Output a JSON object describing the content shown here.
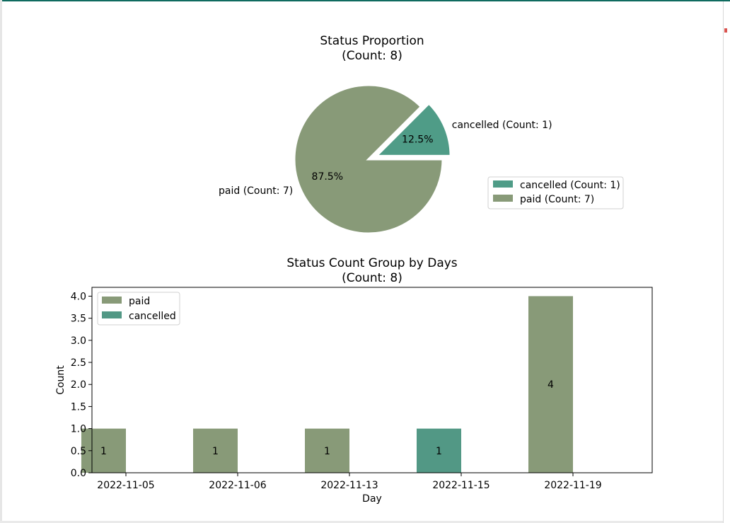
{
  "chart_data": [
    {
      "type": "pie",
      "title": "Status Proportion",
      "subtitle": "(Count: 8)",
      "slices": [
        {
          "label": "cancelled (Count: 1)",
          "value": 1,
          "pct_label": "12.5%",
          "color": "#4f9c87",
          "explode": true
        },
        {
          "label": "paid (Count: 7)",
          "value": 7,
          "pct_label": "87.5%",
          "color": "#889a78",
          "explode": false
        }
      ],
      "legend": {
        "placement": "right",
        "entries": [
          {
            "label": "cancelled (Count: 1)",
            "color": "#4f9c87"
          },
          {
            "label": "paid (Count: 7)",
            "color": "#889a78"
          }
        ]
      }
    },
    {
      "type": "bar",
      "title": "Status Count Group by Days",
      "subtitle": "(Count: 8)",
      "xlabel": "Day",
      "ylabel": "Count",
      "ylim": [
        0,
        4.2
      ],
      "yticks": [
        "0.0",
        "0.5",
        "1.0",
        "1.5",
        "2.0",
        "2.5",
        "3.0",
        "3.5",
        "4.0"
      ],
      "ytick_values": [
        0,
        0.5,
        1,
        1.5,
        2,
        2.5,
        3,
        3.5,
        4
      ],
      "categories": [
        "2022-11-05",
        "2022-11-06",
        "2022-11-13",
        "2022-11-15",
        "2022-11-19"
      ],
      "grid": false,
      "series": [
        {
          "name": "paid",
          "color": "#889a78",
          "values": [
            1,
            1,
            1,
            0,
            4
          ],
          "labels": [
            "1",
            "1",
            "1",
            "",
            "4"
          ]
        },
        {
          "name": "cancelled",
          "color": "#529885",
          "values": [
            0,
            0,
            0,
            1,
            0
          ],
          "labels": [
            "",
            "",
            "",
            "1",
            ""
          ]
        }
      ],
      "legend": {
        "placement": "top-left"
      }
    }
  ]
}
